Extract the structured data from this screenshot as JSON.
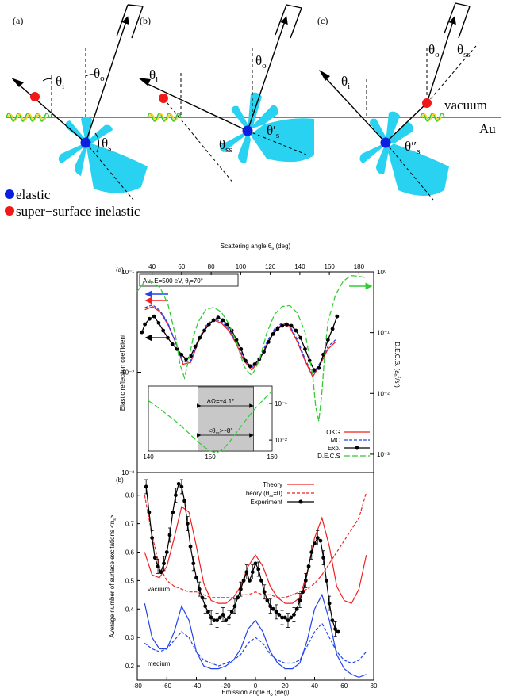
{
  "schematic": {
    "panels": [
      {
        "tag": "(a)",
        "theta_i": "θ",
        "theta_i_sub": "i",
        "theta_o": "θ",
        "theta_o_sub": "o",
        "theta_s": "θ",
        "theta_s_sub": "s"
      },
      {
        "tag": "(b)",
        "theta_i": "θ",
        "theta_i_sub": "i",
        "theta_o": "θ",
        "theta_o_sub": "o",
        "theta_ss": "θ",
        "theta_ss_sub": "ss",
        "theta_s": "θ′",
        "theta_s_sub": "s"
      },
      {
        "tag": "(c)",
        "theta_i": "θ",
        "theta_i_sub": "i",
        "theta_o": "θ",
        "theta_o_sub": "o",
        "theta_ss": "θ",
        "theta_ss_sub": "ss",
        "theta_s": "θ″",
        "theta_s_sub": "s"
      }
    ],
    "vacuum_label": "vacuum",
    "medium_label": "Au",
    "legend": [
      {
        "label": "elastic",
        "color": "#0a1fe0"
      },
      {
        "label": "super−surface inelastic",
        "color": "#f21818"
      }
    ],
    "lobe_color": "#28d2f0"
  },
  "chart_data": [
    {
      "type": "line",
      "panel": "(a)",
      "annotation": "Au, E=500 eV, θ",
      "annotation_sub": "i",
      "annotation_tail": "=70°",
      "top_axis_label": "Scattering angle θ",
      "top_axis_sub": "s",
      "top_axis_unit": " (deg)",
      "top_ticks": [
        40,
        60,
        80,
        100,
        120,
        140,
        160,
        180
      ],
      "top_range": [
        30,
        190
      ],
      "ylabel_left": "Elastic reflection coefficient",
      "ylabel_right": "D.E.C.S. (a",
      "ylabel_right_sub": "0",
      "ylabel_right_sup": "2",
      "ylabel_right_tail": "/sr)",
      "left_log_range": [
        0.001,
        0.1
      ],
      "left_ticks": [
        "10⁻¹",
        "10⁻²",
        "10⁻³"
      ],
      "right_log_range": [
        0.0005,
        1
      ],
      "right_ticks": [
        "10⁰",
        "10⁻¹",
        "10⁻²",
        "10⁻³"
      ],
      "x_range": [
        -75,
        80
      ],
      "series": [
        {
          "name": "OKG",
          "color": "#ee2222",
          "dash": "",
          "y_axis": "left",
          "x": [
            -70,
            -65,
            -60,
            -55,
            -50,
            -45,
            -40,
            -35,
            -30,
            -25,
            -20,
            -15,
            -10,
            -5,
            0,
            5,
            10,
            15,
            20,
            25,
            30,
            35,
            40,
            45,
            50,
            55
          ],
          "y": [
            0.042,
            0.045,
            0.04,
            0.03,
            0.02,
            0.012,
            0.0125,
            0.02,
            0.028,
            0.033,
            0.031,
            0.026,
            0.019,
            0.013,
            0.0105,
            0.013,
            0.019,
            0.026,
            0.03,
            0.028,
            0.02,
            0.013,
            0.009,
            0.012,
            0.017,
            0.02
          ]
        },
        {
          "name": "MC",
          "color": "#2244ee",
          "dash": "4,2",
          "y_axis": "left",
          "x": [
            -70,
            -65,
            -60,
            -55,
            -50,
            -45,
            -40,
            -35,
            -30,
            -25,
            -20,
            -15,
            -10,
            -5,
            0,
            5,
            10,
            15,
            20,
            25,
            30,
            35,
            40,
            45,
            50,
            55
          ],
          "y": [
            0.044,
            0.047,
            0.041,
            0.031,
            0.02,
            0.0125,
            0.013,
            0.021,
            0.029,
            0.034,
            0.032,
            0.027,
            0.02,
            0.0135,
            0.011,
            0.0135,
            0.02,
            0.027,
            0.031,
            0.029,
            0.021,
            0.0135,
            0.0095,
            0.0125,
            0.018,
            0.021
          ]
        },
        {
          "name": "Exp.",
          "color": "#000000",
          "dash": "",
          "y_axis": "left",
          "markers": true,
          "x": [
            -72,
            -70,
            -67,
            -64,
            -61,
            -58,
            -55,
            -52,
            -49,
            -46,
            -43,
            -40,
            -37,
            -34,
            -31,
            -28,
            -25,
            -22,
            -19,
            -16,
            -13,
            -10,
            -7,
            -4,
            -1,
            2,
            5,
            8,
            11,
            14,
            17,
            20,
            23,
            26,
            29,
            32,
            35,
            38,
            41,
            44,
            47,
            50,
            53,
            56
          ],
          "y": [
            0.025,
            0.03,
            0.034,
            0.036,
            0.031,
            0.026,
            0.022,
            0.019,
            0.017,
            0.015,
            0.0135,
            0.0145,
            0.018,
            0.022,
            0.026,
            0.03,
            0.033,
            0.035,
            0.033,
            0.03,
            0.026,
            0.021,
            0.017,
            0.013,
            0.0115,
            0.012,
            0.0135,
            0.016,
            0.02,
            0.024,
            0.027,
            0.029,
            0.03,
            0.029,
            0.026,
            0.022,
            0.017,
            0.013,
            0.0105,
            0.011,
            0.015,
            0.021,
            0.027,
            0.036
          ]
        },
        {
          "name": "D.E.C.S",
          "color": "#33cc33",
          "dash": "7,3",
          "y_axis": "right",
          "x": [
            -75,
            -70,
            -65,
            -60,
            -55,
            -50,
            -47,
            -44,
            -41,
            -38,
            -35,
            -30,
            -25,
            -20,
            -15,
            -10,
            -5,
            -2,
            0,
            2,
            5,
            10,
            15,
            20,
            25,
            30,
            35,
            40,
            42,
            44,
            46,
            48,
            50,
            55,
            60,
            65,
            70,
            75
          ],
          "y": [
            0.48,
            0.7,
            0.68,
            0.55,
            0.3,
            0.09,
            0.03,
            0.018,
            0.04,
            0.09,
            0.15,
            0.24,
            0.26,
            0.22,
            0.14,
            0.07,
            0.028,
            0.022,
            0.02,
            0.024,
            0.035,
            0.1,
            0.2,
            0.27,
            0.28,
            0.21,
            0.1,
            0.02,
            0.006,
            0.0035,
            0.01,
            0.05,
            0.15,
            0.42,
            0.7,
            0.87,
            0.85,
            0.8
          ]
        }
      ],
      "inset": {
        "xticks": [
          140,
          150,
          160
        ],
        "x_range": [
          140,
          160
        ],
        "y_log_range": [
          0.005,
          0.3
        ],
        "yticks": [
          "10⁻¹",
          "10⁻²"
        ],
        "shade_range": [
          148,
          157
        ],
        "delta_omega_label": "ΔΩ=±4.1°",
        "theta_ss_label": "<θ",
        "theta_ss_sub": "ss",
        "theta_ss_tail": ">~8°",
        "curve_x": [
          140,
          141,
          142,
          143,
          144,
          145,
          146,
          147,
          148,
          149,
          150,
          151,
          152,
          153,
          154,
          155,
          156,
          157,
          158,
          159,
          160
        ],
        "curve_y": [
          0.12,
          0.09,
          0.068,
          0.05,
          0.037,
          0.027,
          0.019,
          0.013,
          0.009,
          0.0065,
          0.005,
          0.0045,
          0.0055,
          0.0085,
          0.014,
          0.024,
          0.04,
          0.065,
          0.1,
          0.15,
          0.22
        ]
      }
    },
    {
      "type": "line",
      "panel": "(b)",
      "xlabel": "Emission angle θ",
      "xlabel_sub": "o",
      "xlabel_unit": " (deg)",
      "ylabel": "Average number of surface excitations <n",
      "ylabel_sub": "s",
      "ylabel_tail": ">",
      "x_range": [
        -80,
        80
      ],
      "xticks": [
        -80,
        -60,
        -40,
        -20,
        0,
        20,
        40,
        60,
        80
      ],
      "ylim": [
        0.15,
        0.88
      ],
      "yticks": [
        0.2,
        0.3,
        0.4,
        0.5,
        0.6,
        0.7,
        0.8
      ],
      "region_labels": [
        {
          "text": "vacuum",
          "color": "#ee2222"
        },
        {
          "text": "medium",
          "color": "#2244ee"
        }
      ],
      "series": [
        {
          "name": "Theory",
          "color": "#ee2222",
          "dash": "",
          "group": "vacuum",
          "x": [
            -75,
            -70,
            -65,
            -60,
            -55,
            -50,
            -45,
            -40,
            -35,
            -30,
            -25,
            -20,
            -15,
            -10,
            -5,
            0,
            5,
            10,
            15,
            20,
            25,
            30,
            35,
            40,
            45,
            50,
            55,
            60,
            65,
            70,
            75
          ],
          "y": [
            0.6,
            0.52,
            0.51,
            0.55,
            0.65,
            0.76,
            0.74,
            0.62,
            0.49,
            0.43,
            0.42,
            0.42,
            0.44,
            0.48,
            0.55,
            0.59,
            0.55,
            0.48,
            0.44,
            0.42,
            0.42,
            0.44,
            0.53,
            0.65,
            0.72,
            0.62,
            0.48,
            0.43,
            0.42,
            0.47,
            0.59
          ]
        },
        {
          "name": "Theory (θ",
          "name_sub": "ss",
          "name_tail": "=0)",
          "color": "#ee2222",
          "dash": "4,2",
          "group": "vacuum",
          "x": [
            -75,
            -70,
            -65,
            -60,
            -55,
            -50,
            -45,
            -40,
            -35,
            -30,
            -25,
            -20,
            -15,
            -10,
            -5,
            0,
            5,
            10,
            15,
            20,
            25,
            30,
            35,
            40,
            45,
            50,
            55,
            60,
            65,
            70,
            75
          ],
          "y": [
            0.8,
            0.66,
            0.55,
            0.5,
            0.48,
            0.47,
            0.46,
            0.46,
            0.45,
            0.44,
            0.44,
            0.44,
            0.44,
            0.45,
            0.45,
            0.46,
            0.45,
            0.45,
            0.44,
            0.44,
            0.45,
            0.46,
            0.47,
            0.49,
            0.52,
            0.56,
            0.6,
            0.64,
            0.68,
            0.72,
            0.81
          ]
        },
        {
          "name": "Experiment",
          "color": "#000000",
          "dash": "",
          "markers": true,
          "errorbars": true,
          "x": [
            -74,
            -72,
            -70,
            -68,
            -66,
            -64,
            -62,
            -60,
            -58,
            -56,
            -54,
            -52,
            -50,
            -48,
            -46,
            -44,
            -42,
            -40,
            -38,
            -36,
            -34,
            -32,
            -30,
            -28,
            -26,
            -24,
            -22,
            -20,
            -18,
            -16,
            -14,
            -12,
            -10,
            -8,
            -6,
            -4,
            -2,
            0,
            2,
            4,
            6,
            8,
            10,
            12,
            14,
            16,
            18,
            20,
            22,
            24,
            26,
            28,
            30,
            32,
            34,
            36,
            38,
            40,
            42,
            44,
            46,
            48,
            50,
            52,
            54,
            56
          ],
          "y": [
            0.83,
            0.74,
            0.65,
            0.58,
            0.55,
            0.53,
            0.56,
            0.6,
            0.66,
            0.74,
            0.8,
            0.84,
            0.83,
            0.78,
            0.7,
            0.62,
            0.56,
            0.51,
            0.47,
            0.44,
            0.41,
            0.39,
            0.37,
            0.36,
            0.36,
            0.37,
            0.38,
            0.36,
            0.37,
            0.39,
            0.41,
            0.44,
            0.47,
            0.5,
            0.53,
            0.5,
            0.53,
            0.56,
            0.54,
            0.5,
            0.46,
            0.43,
            0.41,
            0.4,
            0.39,
            0.38,
            0.37,
            0.37,
            0.36,
            0.37,
            0.38,
            0.4,
            0.43,
            0.46,
            0.5,
            0.55,
            0.6,
            0.63,
            0.65,
            0.64,
            0.58,
            0.5,
            0.42,
            0.36,
            0.33,
            0.32
          ],
          "err": 0.025
        },
        {
          "name": "",
          "color": "#2244ee",
          "dash": "",
          "group": "medium",
          "x": [
            -75,
            -70,
            -65,
            -60,
            -55,
            -50,
            -45,
            -40,
            -35,
            -30,
            -25,
            -20,
            -15,
            -10,
            -5,
            0,
            5,
            10,
            15,
            20,
            25,
            30,
            35,
            40,
            45,
            50,
            55,
            60,
            65,
            70,
            75
          ],
          "y": [
            0.42,
            0.3,
            0.26,
            0.26,
            0.32,
            0.41,
            0.36,
            0.25,
            0.2,
            0.19,
            0.19,
            0.2,
            0.22,
            0.26,
            0.33,
            0.36,
            0.32,
            0.25,
            0.21,
            0.19,
            0.19,
            0.21,
            0.29,
            0.4,
            0.45,
            0.36,
            0.24,
            0.19,
            0.17,
            0.16,
            0.17
          ]
        },
        {
          "name": "",
          "color": "#2244ee",
          "dash": "4,2",
          "group": "medium",
          "x": [
            -75,
            -70,
            -65,
            -60,
            -55,
            -50,
            -45,
            -40,
            -35,
            -30,
            -25,
            -20,
            -15,
            -10,
            -5,
            0,
            5,
            10,
            15,
            20,
            25,
            30,
            35,
            40,
            45,
            50,
            55,
            60,
            65,
            70,
            75
          ],
          "y": [
            0.28,
            0.26,
            0.25,
            0.26,
            0.29,
            0.32,
            0.3,
            0.25,
            0.22,
            0.21,
            0.2,
            0.21,
            0.22,
            0.24,
            0.28,
            0.3,
            0.28,
            0.24,
            0.22,
            0.21,
            0.21,
            0.22,
            0.27,
            0.32,
            0.35,
            0.3,
            0.25,
            0.22,
            0.21,
            0.22,
            0.25
          ]
        }
      ]
    }
  ]
}
